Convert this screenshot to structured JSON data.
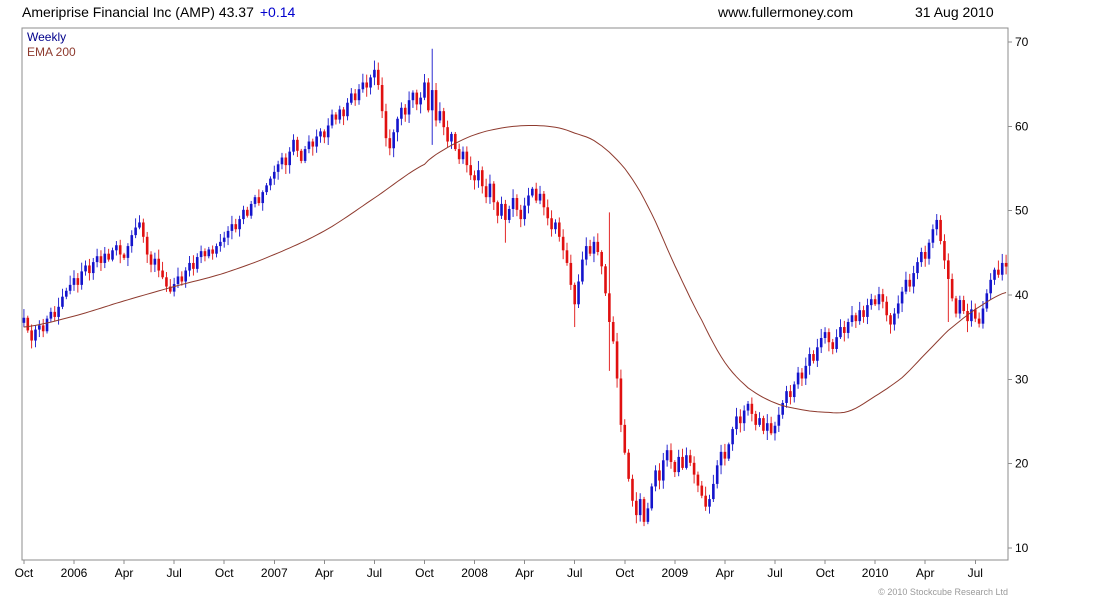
{
  "header": {
    "title": "Ameriprise Financial Inc (AMP) 43.37",
    "change": "+0.14",
    "website": "www.fullermoney.com",
    "date": "31 Aug 2010"
  },
  "legend": {
    "timeframe": "Weekly",
    "overlay": "EMA 200"
  },
  "footer": {
    "copyright": "© 2010 Stockcube Research Ltd"
  },
  "colors": {
    "up": "#1414cc",
    "down": "#e01010",
    "ema": "#8e3a2e",
    "weekly_label": "#00008b",
    "change": "#0000cd",
    "axis": "#8c8c8c",
    "text": "#000000",
    "muted": "#9a9a9a"
  },
  "chart_data": {
    "type": "candlestick",
    "title": "Ameriprise Financial Inc (AMP) weekly candlesticks with EMA 200 overlay",
    "instrument": "Ameriprise Financial Inc (AMP)",
    "last_price": 43.37,
    "change": 0.14,
    "timeframe": "Weekly",
    "overlay": "EMA 200",
    "as_of_date": "31 Aug 2010",
    "ylim": [
      10,
      70
    ],
    "yticks": [
      10,
      20,
      30,
      40,
      50,
      60,
      70
    ],
    "grid": "off",
    "y_axis_side": "right",
    "x_axis": {
      "tick_weeks": [
        0,
        13,
        26,
        39,
        52,
        65,
        78,
        91,
        104,
        117,
        130,
        143,
        156,
        169,
        182,
        195,
        208,
        221,
        234,
        247
      ],
      "tick_labels": [
        "Oct",
        "2006",
        "Apr",
        "Jul",
        "Oct",
        "2007",
        "Apr",
        "Jul",
        "Oct",
        "2008",
        "Apr",
        "Jul",
        "Oct",
        "2009",
        "Apr",
        "Jul",
        "Oct",
        "2010",
        "Apr",
        "Jul"
      ]
    },
    "closes": [
      37.3,
      35.8,
      34.6,
      35.9,
      36.4,
      35.7,
      37.2,
      38.0,
      37.4,
      38.6,
      39.8,
      40.5,
      41.2,
      42.0,
      41.2,
      42.8,
      43.5,
      42.6,
      43.9,
      44.6,
      43.8,
      44.9,
      44.2,
      45.3,
      45.9,
      44.8,
      44.4,
      45.8,
      47.1,
      48.0,
      48.6,
      46.9,
      44.8,
      43.6,
      44.3,
      42.9,
      42.1,
      41.0,
      40.4,
      41.3,
      42.2,
      41.6,
      42.9,
      43.8,
      43.1,
      44.5,
      45.2,
      44.6,
      45.4,
      44.9,
      45.8,
      46.3,
      46.8,
      47.6,
      48.4,
      47.8,
      49.0,
      50.1,
      49.4,
      50.8,
      51.6,
      50.9,
      52.2,
      53.0,
      53.8,
      54.6,
      55.5,
      56.3,
      55.4,
      57.0,
      58.4,
      57.1,
      55.9,
      57.3,
      58.2,
      57.6,
      58.8,
      59.4,
      58.7,
      60.1,
      61.4,
      60.8,
      62.0,
      61.2,
      62.8,
      63.9,
      63.1,
      64.4,
      65.2,
      64.6,
      65.8,
      66.7,
      64.9,
      61.8,
      58.6,
      57.4,
      59.3,
      60.9,
      62.2,
      61.4,
      63.1,
      64.0,
      62.6,
      63.4,
      65.2,
      61.9,
      64.3,
      60.7,
      61.8,
      59.9,
      58.2,
      59.1,
      57.3,
      56.1,
      57.0,
      55.4,
      54.2,
      53.6,
      54.8,
      52.9,
      51.6,
      53.2,
      51.0,
      49.4,
      50.8,
      48.9,
      50.2,
      51.5,
      50.1,
      49.0,
      50.6,
      51.8,
      52.6,
      51.2,
      52.0,
      50.4,
      49.1,
      47.8,
      48.6,
      46.9,
      45.3,
      43.8,
      41.2,
      38.9,
      41.6,
      44.2,
      45.8,
      44.9,
      46.3,
      45.1,
      43.4,
      40.2,
      36.8,
      34.5,
      30.1,
      24.6,
      21.3,
      18.2,
      15.6,
      13.9,
      15.8,
      13.1,
      14.7,
      17.3,
      19.2,
      18.0,
      20.4,
      21.6,
      20.2,
      19.0,
      20.8,
      19.5,
      21.0,
      20.1,
      18.7,
      17.4,
      16.2,
      14.9,
      15.8,
      17.6,
      19.8,
      21.4,
      20.6,
      22.3,
      24.1,
      25.6,
      24.8,
      26.3,
      27.1,
      25.9,
      24.6,
      25.4,
      23.9,
      24.8,
      23.6,
      24.5,
      25.8,
      27.2,
      28.6,
      27.9,
      29.4,
      30.8,
      30.1,
      31.6,
      33.0,
      32.2,
      33.8,
      34.9,
      35.6,
      34.4,
      33.6,
      35.0,
      36.2,
      35.5,
      36.8,
      37.6,
      36.9,
      38.2,
      37.4,
      38.8,
      39.5,
      38.9,
      40.1,
      39.2,
      37.6,
      36.5,
      37.8,
      39.0,
      40.4,
      41.8,
      41.0,
      42.6,
      43.9,
      45.1,
      44.3,
      46.2,
      47.8,
      48.9,
      46.4,
      44.1,
      41.9,
      39.6,
      37.8,
      39.4,
      38.1,
      36.9,
      38.3,
      37.2,
      36.6,
      38.4,
      40.2,
      41.8,
      43.0,
      42.4,
      43.8,
      43.37
    ],
    "wick_overrides": {
      "91": {
        "high": 67.8
      },
      "106": {
        "high": 69.2,
        "low": 57.8
      },
      "125": {
        "low": 46.2
      },
      "143": {
        "low": 36.2
      },
      "152": {
        "high": 49.8,
        "low": 31.0
      },
      "161": {
        "low": 12.6
      },
      "177": {
        "low": 14.4
      },
      "237": {
        "high": 49.6
      },
      "240": {
        "low": 36.8
      },
      "245": {
        "low": 35.6
      }
    },
    "ema_anchors": [
      [
        0,
        36.2
      ],
      [
        13,
        37.5
      ],
      [
        26,
        39.3
      ],
      [
        39,
        41.0
      ],
      [
        52,
        42.6
      ],
      [
        65,
        44.8
      ],
      [
        78,
        47.6
      ],
      [
        91,
        51.5
      ],
      [
        104,
        55.5
      ],
      [
        110,
        57.5
      ],
      [
        117,
        59.0
      ],
      [
        124,
        59.8
      ],
      [
        131,
        60.1
      ],
      [
        138,
        59.9
      ],
      [
        143,
        59.2
      ],
      [
        149,
        58.0
      ],
      [
        156,
        55.0
      ],
      [
        162,
        50.5
      ],
      [
        169,
        43.5
      ],
      [
        176,
        37.0
      ],
      [
        182,
        32.0
      ],
      [
        188,
        29.0
      ],
      [
        195,
        27.2
      ],
      [
        202,
        26.4
      ],
      [
        208,
        26.1
      ],
      [
        214,
        26.2
      ],
      [
        221,
        28.0
      ],
      [
        228,
        30.2
      ],
      [
        234,
        33.0
      ],
      [
        240,
        35.8
      ],
      [
        247,
        38.3
      ],
      [
        255,
        40.3
      ]
    ]
  }
}
